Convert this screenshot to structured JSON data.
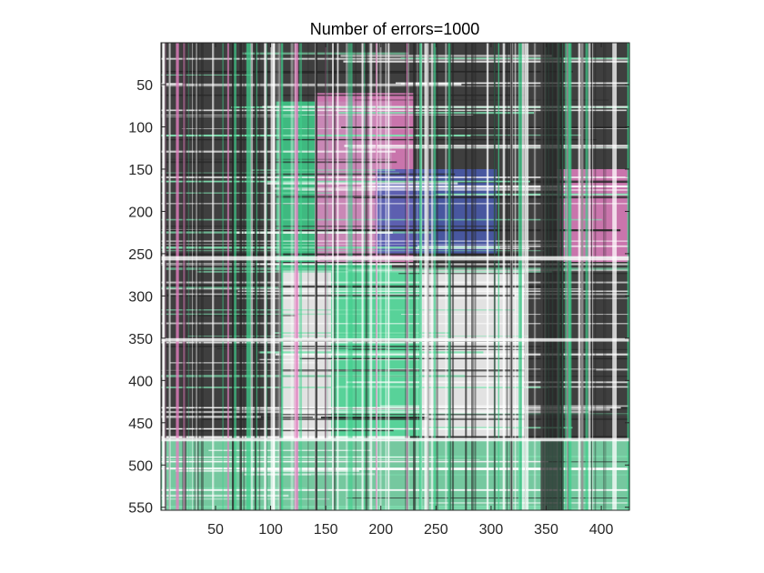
{
  "chart_data": {
    "type": "heatmap",
    "title": "Number of errors=1000",
    "xlabel": "",
    "ylabel": "",
    "xlim": [
      0.5,
      425.5
    ],
    "ylim": [
      0.5,
      553.5
    ],
    "y_direction": "reverse",
    "x_ticks": [
      50,
      100,
      150,
      200,
      250,
      300,
      350,
      400
    ],
    "y_ticks": [
      50,
      100,
      150,
      200,
      250,
      300,
      350,
      400,
      450,
      500,
      550
    ],
    "grid": false,
    "legend": "none",
    "colors": {
      "background": "#3f3f3f",
      "dark": "#262626",
      "white": "#ffffff",
      "green": "#3fcf8c",
      "light_green": "#7fe0b0",
      "pink": "#e27fbf",
      "blue": "#4a5cb0"
    },
    "regions": [
      {
        "name": "upper-left-green-patch",
        "x": [
          105,
          210
        ],
        "y": [
          70,
          270
        ],
        "color": "green"
      },
      {
        "name": "pink-patch",
        "x": [
          140,
          230
        ],
        "y": [
          60,
          260
        ],
        "color": "pink"
      },
      {
        "name": "blue-patch",
        "x": [
          195,
          305
        ],
        "y": [
          150,
          250
        ],
        "color": "blue"
      },
      {
        "name": "white-center-block",
        "x": [
          110,
          330
        ],
        "y": [
          270,
          470
        ],
        "color": "white"
      },
      {
        "name": "green-center-column",
        "x": [
          155,
          235
        ],
        "y": [
          270,
          470
        ],
        "color": "green"
      },
      {
        "name": "right-pink-strip",
        "x": [
          360,
          425
        ],
        "y": [
          150,
          260
        ],
        "color": "pink"
      },
      {
        "name": "bottom-band",
        "x": [
          0,
          425
        ],
        "y": [
          470,
          553
        ],
        "color": "light_green"
      }
    ]
  }
}
